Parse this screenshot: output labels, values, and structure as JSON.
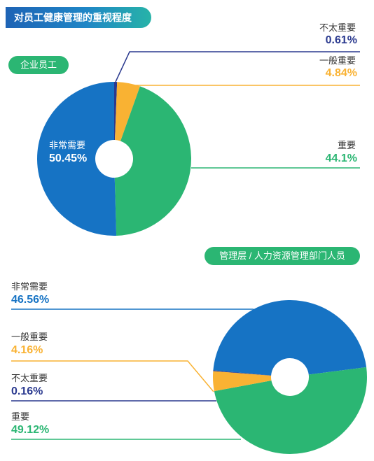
{
  "header": {
    "title": "对员工健康管理的重视程度"
  },
  "colors": {
    "very_important": "#1673c4",
    "important": "#2bb673",
    "somewhat_important": "#f9b233",
    "not_important": "#2b3a8f"
  },
  "chart_data": [
    {
      "type": "pie",
      "title": "企业员工",
      "slices": [
        {
          "label": "不太重要",
          "value": 0.61,
          "display": "0.61%"
        },
        {
          "label": "一般重要",
          "value": 4.84,
          "display": "4.84%"
        },
        {
          "label": "重要",
          "value": 44.1,
          "display": "44.1%"
        },
        {
          "label": "非常需要",
          "value": 50.45,
          "display": "50.45%"
        }
      ]
    },
    {
      "type": "pie",
      "title": "管理层 / 人力资源管理部门人员",
      "slices": [
        {
          "label": "非常需要",
          "value": 46.56,
          "display": "46.56%"
        },
        {
          "label": "重要",
          "value": 49.12,
          "display": "49.12%"
        },
        {
          "label": "一般重要",
          "value": 4.16,
          "display": "4.16%"
        },
        {
          "label": "不太重要",
          "value": 0.16,
          "display": "0.16%"
        }
      ]
    }
  ]
}
